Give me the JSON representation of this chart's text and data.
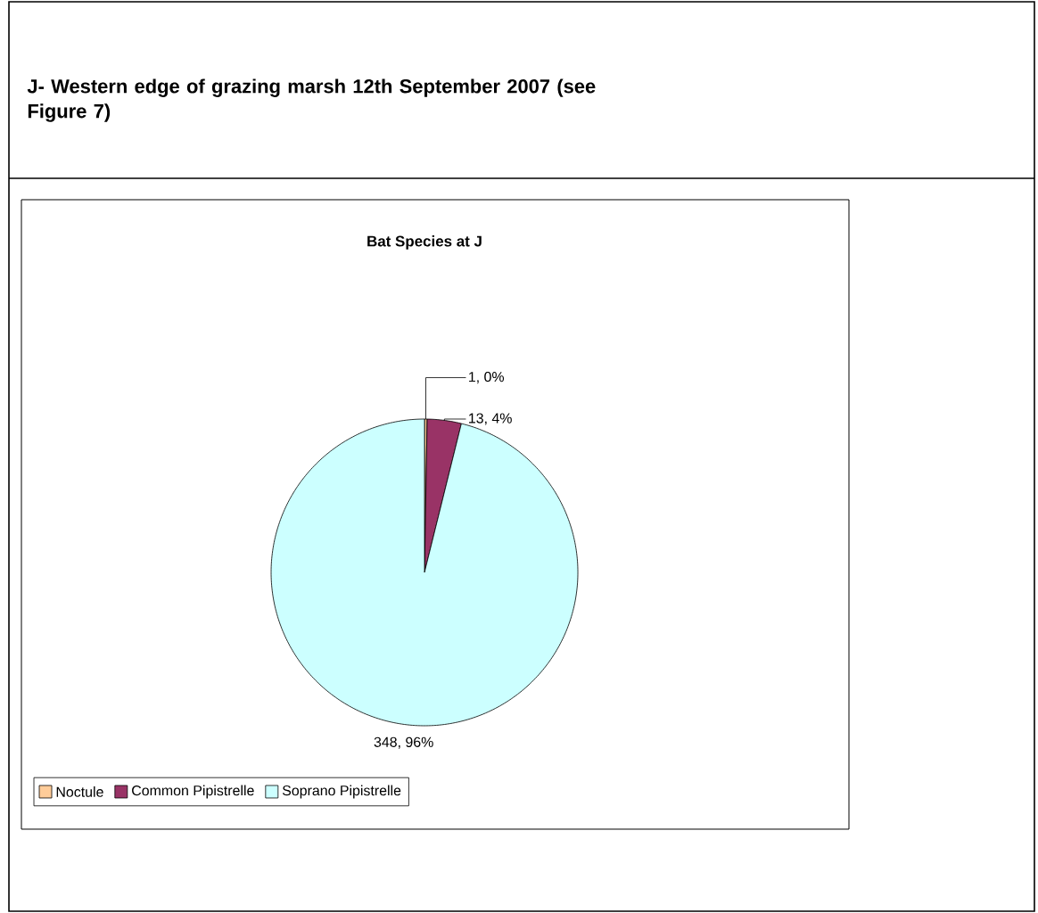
{
  "chart_data": {
    "type": "pie",
    "title": "Bat Species at J",
    "annotations": [
      "J- Western edge of grazing marsh 12th September 2007 (see Figure 7)"
    ],
    "categories": [
      "Noctule",
      "Common Pipistrelle",
      "Soprano Pipistrelle"
    ],
    "values": [
      1,
      13,
      348
    ],
    "colors": [
      "#ffcc99",
      "#993366",
      "#ccffff"
    ],
    "value_labels": [
      "1, 0%",
      "13, 4%",
      "348, 96%"
    ],
    "legend": "bottom"
  }
}
